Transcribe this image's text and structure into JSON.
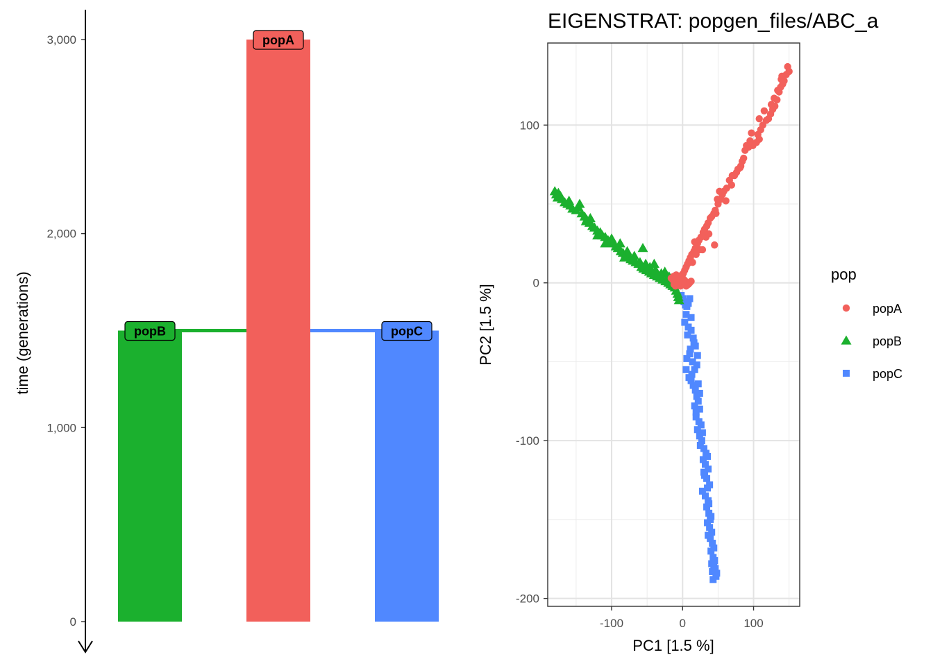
{
  "chart_data": [
    {
      "type": "bar",
      "panel": "left",
      "ylabel": "time (generations)",
      "yticks": [
        0,
        1000,
        2000,
        3000
      ],
      "ytick_labels": [
        "0",
        "1,000",
        "2,000",
        "3,000"
      ],
      "ylim": [
        0,
        3000
      ],
      "y_axis_reversed_arrow": true,
      "populations": [
        {
          "name": "popB",
          "color": "#1bb02e",
          "start": 1500,
          "end": 0,
          "label": "popB"
        },
        {
          "name": "popA",
          "color": "#f2605b",
          "start": 3000,
          "end": 0,
          "label": "popA"
        },
        {
          "name": "popC",
          "color": "#5088ff",
          "start": 1500,
          "end": 0,
          "label": "popC"
        }
      ],
      "splits": [
        {
          "from": "popA",
          "to": "popB",
          "time": 1500,
          "color": "#1bb02e"
        },
        {
          "from": "popA",
          "to": "popC",
          "time": 1500,
          "color": "#5088ff"
        }
      ]
    },
    {
      "type": "scatter",
      "panel": "right",
      "title": "EIGENSTRAT: popgen_files/ABC_a",
      "xlabel": "PC1 [1.5 %]",
      "ylabel": "PC2 [1.5 %]",
      "xlim": [
        -190,
        165
      ],
      "ylim": [
        -205,
        152
      ],
      "xticks": [
        -100,
        0,
        100
      ],
      "xtick_labels": [
        "-100",
        "0",
        "100"
      ],
      "yticks": [
        -200,
        -100,
        0,
        100
      ],
      "ytick_labels": [
        "-200",
        "-100",
        "0",
        "100"
      ],
      "grid": true,
      "legend": {
        "title": "pop",
        "position": "right",
        "entries": [
          {
            "label": "popA",
            "color": "#f2605b",
            "shape": "circle"
          },
          {
            "label": "popB",
            "color": "#1bb02e",
            "shape": "triangle"
          },
          {
            "label": "popC",
            "color": "#5088ff",
            "shape": "square"
          }
        ]
      },
      "series": [
        {
          "name": "popA",
          "color": "#f2605b",
          "shape": "circle",
          "points": [
            [
              148,
              137
            ],
            [
              146,
              132
            ],
            [
              150,
              134
            ],
            [
              143,
              128
            ],
            [
              141,
              126
            ],
            [
              138,
              124
            ],
            [
              136,
              121
            ],
            [
              133,
              116
            ],
            [
              130,
              112
            ],
            [
              127,
              110
            ],
            [
              124,
              107
            ],
            [
              121,
              104
            ],
            [
              118,
              103
            ],
            [
              113,
              100
            ],
            [
              110,
              97
            ],
            [
              106,
              94
            ],
            [
              108,
              91
            ],
            [
              104,
              89
            ],
            [
              99,
              87
            ],
            [
              93,
              86
            ],
            [
              90,
              87
            ],
            [
              88,
              84
            ],
            [
              84,
              77
            ],
            [
              81,
              73
            ],
            [
              78,
              72
            ],
            [
              76,
              70
            ],
            [
              73,
              68
            ],
            [
              70,
              68
            ],
            [
              66,
              65
            ],
            [
              62,
              60
            ],
            [
              58,
              58
            ],
            [
              56,
              56
            ],
            [
              54,
              53
            ],
            [
              50,
              50
            ],
            [
              46,
              46
            ],
            [
              44,
              44
            ],
            [
              41,
              42
            ],
            [
              39,
              41
            ],
            [
              36,
              38
            ],
            [
              34,
              36
            ],
            [
              31,
              34
            ],
            [
              29,
              32
            ],
            [
              26,
              29
            ],
            [
              23,
              27
            ],
            [
              21,
              25
            ],
            [
              18,
              22
            ],
            [
              16,
              20
            ],
            [
              13,
              18
            ],
            [
              11,
              16
            ],
            [
              9,
              14
            ],
            [
              7,
              12
            ],
            [
              5,
              10
            ],
            [
              3,
              8
            ],
            [
              1,
              6
            ],
            [
              -1,
              5
            ],
            [
              -3,
              4
            ],
            [
              -5,
              3
            ],
            [
              -7,
              2
            ],
            [
              -9,
              1
            ],
            [
              -11,
              0
            ],
            [
              -12,
              -1
            ],
            [
              -10,
              -2
            ],
            [
              -8,
              -1
            ],
            [
              -6,
              0
            ],
            [
              -4,
              1
            ],
            [
              -2,
              2
            ],
            [
              0,
              3
            ],
            [
              2,
              2
            ],
            [
              4,
              1
            ],
            [
              6,
              0
            ],
            [
              8,
              -1
            ],
            [
              10,
              0
            ],
            [
              12,
              1
            ],
            [
              -14,
              2
            ],
            [
              -16,
              3
            ],
            [
              -13,
              4
            ],
            [
              -9,
              5
            ],
            [
              -5,
              4
            ],
            [
              -3,
              -2
            ],
            [
              -1,
              -1
            ],
            [
              1,
              0
            ],
            [
              3,
              -1
            ],
            [
              5,
              -2
            ],
            [
              -7,
              -1
            ],
            [
              45,
              24
            ],
            [
              28,
              21
            ],
            [
              33,
              29
            ],
            [
              17,
              26
            ],
            [
              37,
              31
            ],
            [
              61,
              52
            ],
            [
              52,
              58
            ],
            [
              69,
              62
            ],
            [
              86,
              79
            ],
            [
              97,
              95
            ],
            [
              115,
              109
            ],
            [
              125,
              113
            ],
            [
              139,
              129
            ],
            [
              140,
              131
            ],
            [
              47,
              44
            ],
            [
              24,
              21
            ],
            [
              14,
              13
            ],
            [
              19,
              18
            ],
            [
              49,
              53
            ],
            [
              82,
              74
            ],
            [
              95,
              90
            ],
            [
              108,
              104
            ],
            [
              129,
              117
            ],
            [
              134,
              122
            ]
          ]
        },
        {
          "name": "popB",
          "color": "#1bb02e",
          "shape": "triangle",
          "points": [
            [
              -180,
              58
            ],
            [
              -178,
              56
            ],
            [
              -175,
              57
            ],
            [
              -172,
              55
            ],
            [
              -170,
              53
            ],
            [
              -166,
              51
            ],
            [
              -162,
              50
            ],
            [
              -158,
              49
            ],
            [
              -155,
              47
            ],
            [
              -150,
              46
            ],
            [
              -147,
              48
            ],
            [
              -145,
              50
            ],
            [
              -142,
              44
            ],
            [
              -138,
              42
            ],
            [
              -135,
              40
            ],
            [
              -131,
              38
            ],
            [
              -127,
              36
            ],
            [
              -124,
              35
            ],
            [
              -120,
              33
            ],
            [
              -116,
              32
            ],
            [
              -113,
              30
            ],
            [
              -109,
              29
            ],
            [
              -105,
              27
            ],
            [
              -101,
              26
            ],
            [
              -98,
              25
            ],
            [
              -94,
              23
            ],
            [
              -91,
              22
            ],
            [
              -87,
              20
            ],
            [
              -84,
              19
            ],
            [
              -80,
              18
            ],
            [
              -76,
              16
            ],
            [
              -73,
              15
            ],
            [
              -70,
              14
            ],
            [
              -66,
              13
            ],
            [
              -62,
              12
            ],
            [
              -58,
              10
            ],
            [
              -55,
              9
            ],
            [
              -51,
              8
            ],
            [
              -47,
              7
            ],
            [
              -44,
              6
            ],
            [
              -40,
              5
            ],
            [
              -36,
              4
            ],
            [
              -32,
              3
            ],
            [
              -28,
              2
            ],
            [
              -24,
              1
            ],
            [
              -20,
              0
            ],
            [
              -17,
              -1
            ],
            [
              -14,
              -2
            ],
            [
              -11,
              -3
            ],
            [
              -9,
              -5
            ],
            [
              -7,
              -7
            ],
            [
              -6,
              -9
            ],
            [
              -5,
              -11
            ],
            [
              -130,
              41
            ],
            [
              -120,
              30
            ],
            [
              -100,
              28
            ],
            [
              -88,
              25
            ],
            [
              -78,
              20
            ],
            [
              -68,
              17
            ],
            [
              -60,
              13
            ],
            [
              -52,
              12
            ],
            [
              -46,
              10
            ],
            [
              -38,
              8
            ],
            [
              -30,
              6
            ],
            [
              -22,
              3
            ],
            [
              -16,
              1
            ],
            [
              -12,
              -1
            ],
            [
              -136,
              39
            ],
            [
              -160,
              52
            ],
            [
              -176,
              54
            ],
            [
              -109,
              25
            ],
            [
              -82,
              16
            ],
            [
              -56,
              22
            ],
            [
              -40,
              12
            ],
            [
              -25,
              7
            ],
            [
              -19,
              4
            ]
          ]
        },
        {
          "name": "popC",
          "color": "#5088ff",
          "shape": "square",
          "points": [
            [
              -2,
              -8
            ],
            [
              0,
              -10
            ],
            [
              2,
              -12
            ],
            [
              4,
              -14
            ],
            [
              6,
              -15
            ],
            [
              8,
              -13
            ],
            [
              10,
              -10
            ],
            [
              5,
              -20
            ],
            [
              3,
              -25
            ],
            [
              8,
              -28
            ],
            [
              12,
              -30
            ],
            [
              15,
              -35
            ],
            [
              18,
              -40
            ],
            [
              10,
              -45
            ],
            [
              6,
              -48
            ],
            [
              14,
              -50
            ],
            [
              20,
              -52
            ],
            [
              5,
              -55
            ],
            [
              9,
              -60
            ],
            [
              12,
              -62
            ],
            [
              15,
              -65
            ],
            [
              18,
              -68
            ],
            [
              20,
              -72
            ],
            [
              22,
              -75
            ],
            [
              17,
              -78
            ],
            [
              24,
              -80
            ],
            [
              19,
              -85
            ],
            [
              23,
              -88
            ],
            [
              26,
              -90
            ],
            [
              21,
              -93
            ],
            [
              24,
              -97
            ],
            [
              27,
              -100
            ],
            [
              30,
              -105
            ],
            [
              33,
              -108
            ],
            [
              35,
              -110
            ],
            [
              29,
              -112
            ],
            [
              32,
              -115
            ],
            [
              36,
              -118
            ],
            [
              30,
              -120
            ],
            [
              34,
              -124
            ],
            [
              38,
              -128
            ],
            [
              28,
              -132
            ],
            [
              32,
              -135
            ],
            [
              36,
              -138
            ],
            [
              34,
              -142
            ],
            [
              37,
              -146
            ],
            [
              39,
              -150
            ],
            [
              35,
              -152
            ],
            [
              38,
              -155
            ],
            [
              41,
              -158
            ],
            [
              39,
              -162
            ],
            [
              42,
              -165
            ],
            [
              40,
              -170
            ],
            [
              43,
              -174
            ],
            [
              41,
              -178
            ],
            [
              44,
              -180
            ],
            [
              42,
              -183
            ],
            [
              46,
              -181
            ],
            [
              47,
              -186
            ],
            [
              43,
              -188
            ],
            [
              12,
              -22
            ],
            [
              16,
              -38
            ],
            [
              21,
              -46
            ],
            [
              13,
              -58
            ],
            [
              24,
              -70
            ],
            [
              19,
              -82
            ],
            [
              28,
              -95
            ],
            [
              25,
              -103
            ],
            [
              31,
              -122
            ],
            [
              35,
              -130
            ],
            [
              37,
              -140
            ],
            [
              40,
              -148
            ],
            [
              36,
              -160
            ],
            [
              44,
              -168
            ],
            [
              45,
              -176
            ],
            [
              48,
              -184
            ],
            [
              7,
              -33
            ],
            [
              11,
              -42
            ],
            [
              17,
              -55
            ],
            [
              22,
              -64
            ]
          ]
        }
      ]
    }
  ]
}
